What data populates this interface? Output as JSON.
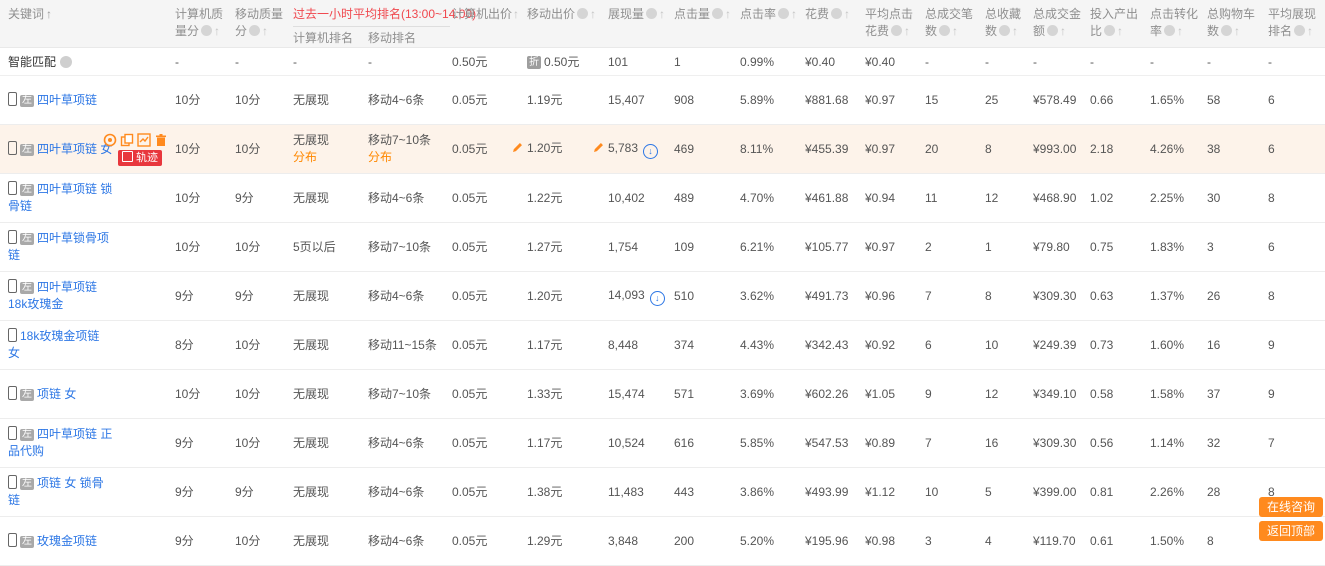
{
  "colors": {
    "accent_orange": "#ff8a1e",
    "link_blue": "#2d77e5",
    "rank_header_red": "#f0484e",
    "highlight_row_bg": "#fdf3ea",
    "trajectory_badge_red": "#e8373d"
  },
  "header": {
    "keyword": "关键词",
    "rank_group_title": "过去一小时平均排名(13:00~14:00)",
    "rank_sub": [
      "计算机排名",
      "移动排名"
    ],
    "cols": [
      {
        "label": "计算机质量分",
        "help": true
      },
      {
        "label": "移动质量分",
        "help": true
      },
      {
        "label": "计算机出价",
        "help": false
      },
      {
        "label": "移动出价",
        "help": true
      },
      {
        "label": "展现量",
        "help": true
      },
      {
        "label": "点击量",
        "help": true
      },
      {
        "label": "点击率",
        "help": true
      },
      {
        "label": "花费",
        "help": true
      },
      {
        "label": "平均点击花费",
        "help": true
      },
      {
        "label": "总成交笔数",
        "help": true
      },
      {
        "label": "总收藏数",
        "help": true
      },
      {
        "label": "总成交金额",
        "help": true
      },
      {
        "label": "投入产出比",
        "help": true
      },
      {
        "label": "点击转化率",
        "help": true
      },
      {
        "label": "总购物车数",
        "help": true
      },
      {
        "label": "平均展现排名",
        "help": true
      }
    ]
  },
  "keyword_badge_label": "左",
  "trajectory_label": "轨迹",
  "smart_match": {
    "label": "智能匹配",
    "pc_score": "-",
    "mb_score": "-",
    "pc_rank": "-",
    "mb_rank": "-",
    "pc_bid": "0.50元",
    "mb_bid": "0.50元",
    "mb_bid_badge": "折",
    "impr": "101",
    "clicks": "1",
    "ctr": "0.99%",
    "cost": "¥0.40",
    "avg_cost": "¥0.40",
    "orders": "-",
    "favs": "-",
    "amount": "-",
    "roi": "-",
    "cvr": "-",
    "carts": "-",
    "rank": "-"
  },
  "rows": [
    {
      "keyword": "四叶草项链",
      "badge": true,
      "pc_score": "10分",
      "mb_score": "10分",
      "pc_rank": "无展现",
      "pc_rank_link": "",
      "mb_rank": "移动4~6条",
      "mb_rank_link": "",
      "pc_bid": "0.05元",
      "mb_bid": "1.19元",
      "mb_bid_edit": false,
      "impr": "15,407",
      "impr_edit": false,
      "impr_trend": false,
      "clicks": "908",
      "ctr": "5.89%",
      "cost": "¥881.68",
      "avg_cost": "¥0.97",
      "orders": "15",
      "favs": "25",
      "amount": "¥578.49",
      "roi": "0.66",
      "cvr": "1.65%",
      "carts": "58",
      "rank": "6",
      "highlight": false,
      "tools": false
    },
    {
      "keyword": "四叶草项链 女",
      "badge": true,
      "pc_score": "10分",
      "mb_score": "10分",
      "pc_rank": "无展现",
      "pc_rank_link": "分布",
      "mb_rank": "移动7~10条",
      "mb_rank_link": "分布",
      "pc_bid": "0.05元",
      "mb_bid": "1.20元",
      "mb_bid_edit": true,
      "impr": "5,783",
      "impr_edit": true,
      "impr_trend": true,
      "clicks": "469",
      "ctr": "8.11%",
      "cost": "¥455.39",
      "avg_cost": "¥0.97",
      "orders": "20",
      "favs": "8",
      "amount": "¥993.00",
      "roi": "2.18",
      "cvr": "4.26%",
      "carts": "38",
      "rank": "6",
      "highlight": true,
      "tools": true
    },
    {
      "keyword": "四叶草项链 锁骨链",
      "badge": true,
      "pc_score": "10分",
      "mb_score": "9分",
      "pc_rank": "无展现",
      "pc_rank_link": "",
      "mb_rank": "移动4~6条",
      "mb_rank_link": "",
      "pc_bid": "0.05元",
      "mb_bid": "1.22元",
      "mb_bid_edit": false,
      "impr": "10,402",
      "impr_edit": false,
      "impr_trend": false,
      "clicks": "489",
      "ctr": "4.70%",
      "cost": "¥461.88",
      "avg_cost": "¥0.94",
      "orders": "11",
      "favs": "12",
      "amount": "¥468.90",
      "roi": "1.02",
      "cvr": "2.25%",
      "carts": "30",
      "rank": "8",
      "highlight": false,
      "tools": false
    },
    {
      "keyword": "四叶草锁骨项链",
      "badge": true,
      "pc_score": "10分",
      "mb_score": "10分",
      "pc_rank": "5页以后",
      "pc_rank_link": "",
      "mb_rank": "移动7~10条",
      "mb_rank_link": "",
      "pc_bid": "0.05元",
      "mb_bid": "1.27元",
      "mb_bid_edit": false,
      "impr": "1,754",
      "impr_edit": false,
      "impr_trend": false,
      "clicks": "109",
      "ctr": "6.21%",
      "cost": "¥105.77",
      "avg_cost": "¥0.97",
      "orders": "2",
      "favs": "1",
      "amount": "¥79.80",
      "roi": "0.75",
      "cvr": "1.83%",
      "carts": "3",
      "rank": "6",
      "highlight": false,
      "tools": false
    },
    {
      "keyword": "四叶草项链18k玫瑰金",
      "badge": true,
      "pc_score": "9分",
      "mb_score": "9分",
      "pc_rank": "无展现",
      "pc_rank_link": "",
      "mb_rank": "移动4~6条",
      "mb_rank_link": "",
      "pc_bid": "0.05元",
      "mb_bid": "1.20元",
      "mb_bid_edit": false,
      "impr": "14,093",
      "impr_edit": false,
      "impr_trend": true,
      "clicks": "510",
      "ctr": "3.62%",
      "cost": "¥491.73",
      "avg_cost": "¥0.96",
      "orders": "7",
      "favs": "8",
      "amount": "¥309.30",
      "roi": "0.63",
      "cvr": "1.37%",
      "carts": "26",
      "rank": "8",
      "highlight": false,
      "tools": false
    },
    {
      "keyword": "18k玫瑰金项链 女",
      "badge": false,
      "pc_score": "8分",
      "mb_score": "10分",
      "pc_rank": "无展现",
      "pc_rank_link": "",
      "mb_rank": "移动11~15条",
      "mb_rank_link": "",
      "pc_bid": "0.05元",
      "mb_bid": "1.17元",
      "mb_bid_edit": false,
      "impr": "8,448",
      "impr_edit": false,
      "impr_trend": false,
      "clicks": "374",
      "ctr": "4.43%",
      "cost": "¥342.43",
      "avg_cost": "¥0.92",
      "orders": "6",
      "favs": "10",
      "amount": "¥249.39",
      "roi": "0.73",
      "cvr": "1.60%",
      "carts": "16",
      "rank": "9",
      "highlight": false,
      "tools": false
    },
    {
      "keyword": "项链 女",
      "badge": true,
      "pc_score": "10分",
      "mb_score": "10分",
      "pc_rank": "无展现",
      "pc_rank_link": "",
      "mb_rank": "移动7~10条",
      "mb_rank_link": "",
      "pc_bid": "0.05元",
      "mb_bid": "1.33元",
      "mb_bid_edit": false,
      "impr": "15,474",
      "impr_edit": false,
      "impr_trend": false,
      "clicks": "571",
      "ctr": "3.69%",
      "cost": "¥602.26",
      "avg_cost": "¥1.05",
      "orders": "9",
      "favs": "12",
      "amount": "¥349.10",
      "roi": "0.58",
      "cvr": "1.58%",
      "carts": "37",
      "rank": "9",
      "highlight": false,
      "tools": false
    },
    {
      "keyword": "四叶草项链 正品代购",
      "badge": true,
      "pc_score": "9分",
      "mb_score": "10分",
      "pc_rank": "无展现",
      "pc_rank_link": "",
      "mb_rank": "移动4~6条",
      "mb_rank_link": "",
      "pc_bid": "0.05元",
      "mb_bid": "1.17元",
      "mb_bid_edit": false,
      "impr": "10,524",
      "impr_edit": false,
      "impr_trend": false,
      "clicks": "616",
      "ctr": "5.85%",
      "cost": "¥547.53",
      "avg_cost": "¥0.89",
      "orders": "7",
      "favs": "16",
      "amount": "¥309.30",
      "roi": "0.56",
      "cvr": "1.14%",
      "carts": "32",
      "rank": "7",
      "highlight": false,
      "tools": false
    },
    {
      "keyword": "项链 女 锁骨链",
      "badge": true,
      "pc_score": "9分",
      "mb_score": "9分",
      "pc_rank": "无展现",
      "pc_rank_link": "",
      "mb_rank": "移动4~6条",
      "mb_rank_link": "",
      "pc_bid": "0.05元",
      "mb_bid": "1.38元",
      "mb_bid_edit": false,
      "impr": "11,483",
      "impr_edit": false,
      "impr_trend": false,
      "clicks": "443",
      "ctr": "3.86%",
      "cost": "¥493.99",
      "avg_cost": "¥1.12",
      "orders": "10",
      "favs": "5",
      "amount": "¥399.00",
      "roi": "0.81",
      "cvr": "2.26%",
      "carts": "28",
      "rank": "8",
      "highlight": false,
      "tools": false
    },
    {
      "keyword": "玫瑰金项链",
      "badge": true,
      "pc_score": "9分",
      "mb_score": "10分",
      "pc_rank": "无展现",
      "pc_rank_link": "",
      "mb_rank": "移动4~6条",
      "mb_rank_link": "",
      "pc_bid": "0.05元",
      "mb_bid": "1.29元",
      "mb_bid_edit": false,
      "impr": "3,848",
      "impr_edit": false,
      "impr_trend": false,
      "clicks": "200",
      "ctr": "5.20%",
      "cost": "¥195.96",
      "avg_cost": "¥0.98",
      "orders": "3",
      "favs": "4",
      "amount": "¥119.70",
      "roi": "0.61",
      "cvr": "1.50%",
      "carts": "8",
      "rank": "",
      "highlight": false,
      "tools": false
    }
  ],
  "floating": {
    "consult_label": "在线咨询",
    "back_top_label": "返回顶部"
  }
}
